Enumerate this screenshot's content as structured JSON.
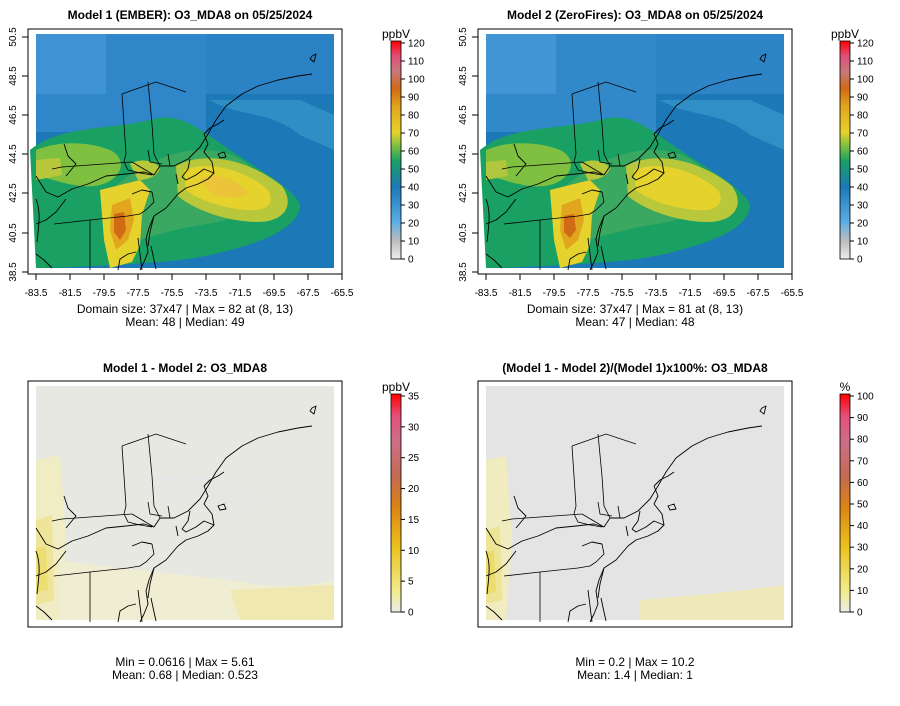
{
  "chart_data": [
    {
      "type": "heatmap",
      "title": "Model 1 (EMBER): O3_MDA8 on 05/25/2024",
      "variable": "O3_MDA8",
      "date": "05/25/2024",
      "units": "ppbV",
      "xlabel": "",
      "ylabel": "",
      "xlim": [
        -83.5,
        -65.5
      ],
      "ylim": [
        38.5,
        50.5
      ],
      "x_ticks": [
        "-83.5",
        "-81.5",
        "-79.5",
        "-77.5",
        "-75.5",
        "-73.5",
        "-71.5",
        "-69.5",
        "-67.5",
        "-65.5"
      ],
      "y_ticks": [
        "38.5",
        "40.5",
        "42.5",
        "44.5",
        "46.5",
        "48.5",
        "50.5"
      ],
      "colorbar_range": [
        0,
        120
      ],
      "colorbar_ticks": [
        "0",
        "10",
        "20",
        "30",
        "40",
        "50",
        "60",
        "70",
        "80",
        "90",
        "100",
        "110",
        "120"
      ],
      "domain_size": "37x47",
      "max": 82,
      "max_location": "(8, 13)",
      "mean": 48,
      "median": 49,
      "stats_line1": "Domain size: 37x47 | Max = 82 at (8, 13)",
      "stats_line2": "Mean: 48 |  Median: 49"
    },
    {
      "type": "heatmap",
      "title": "Model 2 (ZeroFires): O3_MDA8 on 05/25/2024",
      "variable": "O3_MDA8",
      "date": "05/25/2024",
      "units": "ppbV",
      "xlabel": "",
      "ylabel": "",
      "xlim": [
        -83.5,
        -65.5
      ],
      "ylim": [
        38.5,
        50.5
      ],
      "x_ticks": [
        "-83.5",
        "-81.5",
        "-79.5",
        "-77.5",
        "-75.5",
        "-73.5",
        "-71.5",
        "-69.5",
        "-67.5",
        "-65.5"
      ],
      "y_ticks": [
        "38.5",
        "40.5",
        "42.5",
        "44.5",
        "46.5",
        "48.5",
        "50.5"
      ],
      "colorbar_range": [
        0,
        120
      ],
      "colorbar_ticks": [
        "0",
        "10",
        "20",
        "30",
        "40",
        "50",
        "60",
        "70",
        "80",
        "90",
        "100",
        "110",
        "120"
      ],
      "domain_size": "37x47",
      "max": 81,
      "max_location": "(8, 13)",
      "mean": 47,
      "median": 48,
      "stats_line1": "Domain size: 37x47 | Max = 81 at (8, 13)",
      "stats_line2": "Mean: 47 |  Median: 48"
    },
    {
      "type": "heatmap",
      "title": "Model 1 - Model 2: O3_MDA8",
      "units": "ppbV",
      "colorbar_range": [
        0,
        35
      ],
      "colorbar_ticks": [
        "0",
        "5",
        "10",
        "15",
        "20",
        "25",
        "30",
        "35"
      ],
      "min": 0.0616,
      "max": 5.61,
      "mean": 0.68,
      "median": 0.523,
      "stats_line1": "Min = 0.0616 | Max = 5.61",
      "stats_line2": "Mean: 0.68 |  Median: 0.523"
    },
    {
      "type": "heatmap",
      "title": "(Model 1 - Model 2)/(Model 1)x100%: O3_MDA8",
      "units": "%",
      "colorbar_range": [
        0,
        100
      ],
      "colorbar_ticks": [
        "0",
        "10",
        "20",
        "30",
        "40",
        "50",
        "60",
        "70",
        "80",
        "90",
        "100"
      ],
      "min": 0.2,
      "max": 10.2,
      "mean": 1.4,
      "median": 1,
      "stats_line1": "Min = 0.2 | Max = 10.2",
      "stats_line2": "Mean: 1.4 |  Median: 1"
    }
  ]
}
